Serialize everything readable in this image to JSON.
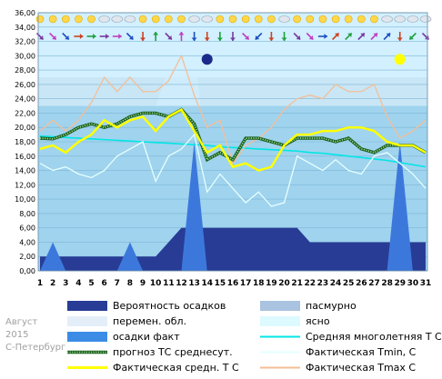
{
  "meta": {
    "month": "Август",
    "year": "2015",
    "city": "С-Петербург"
  },
  "colors": {
    "bg_clear": "#d2f0ff",
    "bg_partly": "#c8e6f5",
    "bg_cloudy": "#a9d2ea",
    "plot_bg": "#9fd3ee",
    "precip_prob": "#283c96",
    "precip_fact": "#3c78dc",
    "climate": "#00e6e6",
    "tmin": "#e6ffff",
    "tmax": "#f5be96",
    "mean": "#ffff00",
    "forecast": "#28a028"
  },
  "chart_data": {
    "type": "line",
    "title": "",
    "xlabel": "",
    "ylabel": "",
    "x": [
      1,
      2,
      3,
      4,
      5,
      6,
      7,
      8,
      9,
      10,
      11,
      12,
      13,
      14,
      15,
      16,
      17,
      18,
      19,
      20,
      21,
      22,
      23,
      24,
      25,
      26,
      27,
      28,
      29,
      30,
      31
    ],
    "x_ticks": [
      "1",
      "2",
      "3",
      "4",
      "5",
      "6",
      "7",
      "8",
      "9",
      "10",
      "11",
      "12",
      "13",
      "14",
      "15",
      "16",
      "17",
      "18",
      "19",
      "20",
      "21",
      "22",
      "23",
      "24",
      "25",
      "26",
      "27",
      "28",
      "29",
      "30",
      "31"
    ],
    "ylim": [
      0,
      36
    ],
    "y_ticks": [
      "0,00",
      "2,00",
      "4,00",
      "6,00",
      "8,00",
      "10,00",
      "12,00",
      "14,00",
      "16,00",
      "18,00",
      "20,00",
      "22,00",
      "24,00",
      "26,00",
      "28,00",
      "30,00",
      "32,00",
      "34,00",
      "36,00"
    ],
    "grid": true,
    "legend_position": "bottom",
    "series": [
      {
        "name": "Вероятность осадков",
        "kind": "step-area",
        "color": "#283c96",
        "values": [
          2,
          2,
          2,
          2,
          2,
          2,
          2,
          2,
          2,
          2,
          4,
          6,
          6,
          6,
          6,
          6,
          6,
          6,
          6,
          6,
          6,
          4,
          4,
          4,
          4,
          4,
          4,
          4,
          4,
          4,
          4
        ]
      },
      {
        "name": "осадки факт",
        "kind": "spike-area",
        "color": "#3c78dc",
        "values": [
          0,
          4,
          0,
          0,
          0,
          0,
          0,
          4,
          0,
          0,
          0,
          0,
          18,
          0,
          0,
          0,
          0,
          0,
          0,
          0,
          0,
          0,
          0,
          0,
          0,
          0,
          0,
          0,
          18,
          0,
          0
        ]
      },
      {
        "name": "Средняя многолетняя Т С",
        "kind": "line",
        "color": "#00e6e6",
        "values": [
          18.8,
          18.7,
          18.6,
          18.5,
          18.4,
          18.3,
          18.2,
          18.1,
          18.0,
          17.9,
          17.8,
          17.7,
          17.6,
          17.5,
          17.3,
          17.2,
          17.1,
          17.0,
          16.9,
          16.8,
          16.7,
          16.5,
          16.4,
          16.2,
          16.0,
          15.8,
          15.6,
          15.4,
          15.1,
          14.8,
          14.5
        ]
      },
      {
        "name": "Фактическая Tmin, C",
        "kind": "line",
        "color": "#e6ffff",
        "values": [
          15,
          14,
          14.5,
          13.5,
          13,
          14,
          16,
          17,
          18,
          12.5,
          16,
          17,
          19,
          11,
          13.5,
          11.5,
          9.5,
          11,
          9,
          9.5,
          16,
          15,
          14,
          15.5,
          14,
          13.5,
          16,
          16.5,
          15,
          13.5,
          11.5
        ]
      },
      {
        "name": "Фактическая Tmax C",
        "kind": "line",
        "color": "#f5be96",
        "values": [
          19.5,
          21,
          19.5,
          21,
          23.5,
          27,
          25,
          27,
          25,
          25,
          26.5,
          30,
          24.5,
          20,
          21,
          15,
          17.5,
          18.5,
          20,
          22.5,
          24,
          24.5,
          24,
          26,
          25,
          25,
          26,
          21.5,
          18.5,
          19.5,
          21
        ]
      },
      {
        "name": "прогноз ТС среднесут.",
        "kind": "line-dotted",
        "color": "#28a028",
        "values": [
          18.5,
          18.4,
          19,
          20,
          20.5,
          20,
          20.5,
          21.5,
          22,
          22,
          21.5,
          22.5,
          20.5,
          15.5,
          16.5,
          15.5,
          18.5,
          18.5,
          18,
          17.5,
          18.5,
          18.5,
          18.5,
          18,
          18.5,
          17,
          16.5,
          17.5,
          17.5,
          17.5,
          16.5
        ]
      },
      {
        "name": "Фактическая средн. Т С",
        "kind": "line",
        "color": "#ffff00",
        "values": [
          17,
          17.5,
          16.5,
          18,
          19,
          21,
          20,
          21,
          21.5,
          19.5,
          21.5,
          22.5,
          19.5,
          16.5,
          17.5,
          14.5,
          15,
          14,
          14.5,
          17.5,
          19,
          19,
          19.5,
          19.5,
          20,
          20,
          19.5,
          18,
          17.5,
          17.5,
          16.5
        ]
      }
    ],
    "legend": [
      {
        "label": "Вероятность осадков",
        "symbol": "box",
        "color": "#283c96"
      },
      {
        "label": "пасмурно",
        "symbol": "box",
        "color": "#a9c3e0"
      },
      {
        "label": "перемен. обл.",
        "symbol": "box",
        "color": "#e3eef8"
      },
      {
        "label": "ясно",
        "symbol": "box",
        "color": "#dcfaff"
      },
      {
        "label": "осадки факт",
        "symbol": "box",
        "color": "#3c8ce6"
      },
      {
        "label": "Средняя многолетняя Т С",
        "symbol": "line",
        "color": "#00e6e6"
      },
      {
        "label": "прогноз ТС среднесут.",
        "symbol": "dotted",
        "color": "#28a028"
      },
      {
        "label": "Фактическая Tmin, C",
        "symbol": "line",
        "color": "#e6ffff"
      },
      {
        "label": "Фактическая средн. Т С",
        "symbol": "line",
        "color": "#ffff00"
      },
      {
        "label": "Фактическая Tmax C",
        "symbol": "line",
        "color": "#f5be96"
      }
    ],
    "markers": [
      {
        "day": 14,
        "value": 29.5,
        "color": "#1b2a8a"
      },
      {
        "day": 29,
        "value": 29.5,
        "color": "#ffff00"
      }
    ],
    "weather_icons": [
      "sun",
      "sun",
      "sun",
      "sun",
      "sun",
      "cloud",
      "cloud",
      "cloud",
      "sun",
      "sun",
      "sun",
      "sun",
      "cloud",
      "cloud",
      "sun",
      "sun",
      "sun",
      "sun",
      "sun",
      "cloud",
      "sun",
      "sun",
      "sun",
      "sun",
      "sun",
      "sun",
      "sun",
      "cloud",
      "cloud",
      "cloud",
      "cloud"
    ],
    "wind_arrows": [
      "down-right",
      "down-right",
      "down-right",
      "right",
      "right",
      "right",
      "right",
      "down-right",
      "down",
      "up",
      "down-right",
      "up",
      "down",
      "down",
      "down",
      "down",
      "down-right",
      "down-left",
      "down",
      "down",
      "down-right",
      "down-right",
      "right",
      "up-right",
      "up-right",
      "up-right",
      "up-right",
      "up-right",
      "down",
      "down-left",
      "down-right"
    ]
  }
}
